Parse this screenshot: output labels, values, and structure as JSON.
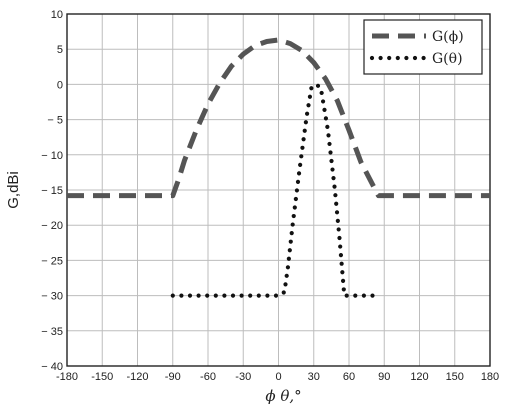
{
  "chart_data": {
    "type": "line",
    "title": "",
    "xlabel": "ϕ  θ,°",
    "ylabel": "G,dBi",
    "xlim": [
      -180,
      180
    ],
    "ylim": [
      -40,
      10
    ],
    "xticks": [
      "-180",
      "-150",
      "-120",
      "-90",
      "-60",
      "-30",
      "0",
      "30",
      "60",
      "90",
      "120",
      "150",
      "180"
    ],
    "yticks": [
      "10",
      "5",
      "0",
      "− 5",
      "− 10",
      "− 15",
      "− 20",
      "− 25",
      "− 30",
      "− 35",
      "− 40"
    ],
    "grid": true,
    "legend_position": "top-right",
    "series": [
      {
        "name": "G(ϕ)",
        "style": "dashed",
        "color": "#555555",
        "x": [
          -180,
          -90,
          -85,
          -80,
          -70,
          -60,
          -50,
          -40,
          -30,
          -20,
          -10,
          0,
          10,
          20,
          30,
          40,
          50,
          60,
          70,
          80,
          85,
          90,
          180
        ],
        "y": [
          -15.8,
          -15.8,
          -13.5,
          -10.8,
          -6.5,
          -2.8,
          0.2,
          2.6,
          4.3,
          5.5,
          6.1,
          6.3,
          5.8,
          4.8,
          3.1,
          0.8,
          -2.3,
          -6.5,
          -11.0,
          -14.2,
          -15.8,
          -15.8,
          -15.8
        ]
      },
      {
        "name": "G(θ)",
        "style": "dotted",
        "color": "#111111",
        "x": [
          -90,
          -80,
          -60,
          -40,
          -20,
          0,
          5,
          8,
          12,
          18,
          24,
          28,
          32,
          36,
          42,
          48,
          52,
          56,
          60,
          70,
          80
        ],
        "y": [
          -30,
          -30,
          -30,
          -30,
          -30,
          -30,
          -29.5,
          -26,
          -20,
          -12,
          -4.5,
          -0.5,
          0,
          -0.5,
          -6.5,
          -15,
          -22,
          -30,
          -30,
          -30,
          -30
        ]
      }
    ]
  }
}
